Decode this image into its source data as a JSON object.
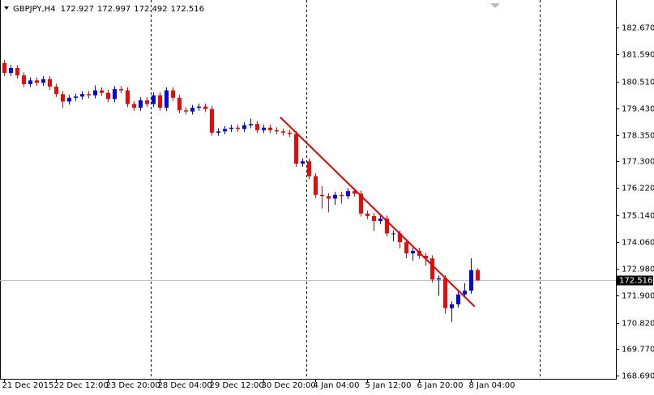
{
  "chart_data": {
    "type": "candlestick",
    "symbol": "GBPJPY,H4",
    "ohlc": [
      172.927,
      172.997,
      172.492,
      172.516
    ],
    "categories": [
      "21 Dec 2015",
      null,
      null,
      null,
      null,
      null,
      null,
      null,
      "22 Dec 12:00",
      null,
      null,
      null,
      null,
      null,
      null,
      null,
      "23 Dec 20:00",
      null,
      null,
      null,
      null,
      null,
      null,
      null,
      "28 Dec 04:00",
      null,
      null,
      null,
      null,
      null,
      null,
      null,
      "29 Dec 12:00",
      null,
      null,
      null,
      null,
      null,
      null,
      null,
      "30 Dec 20:00",
      null,
      null,
      null,
      null,
      null,
      null,
      null,
      "4 Jan 04:00",
      null,
      null,
      null,
      null,
      null,
      null,
      null,
      "5 Jan 12:00",
      null,
      null,
      null,
      null,
      null,
      null,
      null,
      "6 Jan 20:00",
      null,
      null,
      null,
      null,
      null,
      null,
      null,
      "8 Jan 04:00",
      null
    ],
    "open": [
      181.25,
      180.85,
      181.05,
      180.75,
      180.4,
      180.55,
      180.45,
      180.6,
      180.3,
      180.0,
      179.7,
      179.85,
      179.9,
      180.0,
      179.95,
      180.15,
      180.05,
      179.8,
      180.2,
      180.15,
      179.6,
      179.45,
      179.75,
      179.6,
      179.95,
      179.45,
      180.15,
      179.85,
      179.35,
      179.3,
      179.45,
      179.5,
      179.4,
      178.45,
      178.5,
      178.6,
      178.65,
      178.6,
      178.75,
      178.8,
      178.55,
      178.65,
      178.55,
      178.5,
      178.45,
      178.4,
      177.2,
      177.3,
      176.7,
      175.95,
      175.9,
      175.8,
      175.95,
      175.9,
      176.1,
      176.0,
      175.2,
      175.1,
      174.9,
      175.0,
      174.4,
      174.4,
      174.05,
      173.6,
      173.7,
      173.5,
      173.4,
      172.55,
      172.6,
      171.4,
      171.55,
      171.95,
      172.1,
      172.927
    ],
    "high": [
      181.37,
      181.17,
      181.17,
      180.87,
      180.67,
      180.67,
      180.72,
      180.72,
      180.42,
      180.12,
      179.97,
      180.02,
      180.12,
      180.12,
      180.35,
      180.27,
      180.17,
      180.32,
      180.32,
      180.27,
      179.72,
      179.87,
      179.87,
      180.07,
      180.07,
      180.27,
      180.27,
      179.97,
      179.47,
      179.57,
      179.62,
      179.62,
      179.52,
      178.62,
      178.72,
      178.77,
      178.77,
      178.87,
      179.02,
      178.92,
      178.77,
      178.77,
      178.67,
      178.62,
      178.57,
      178.52,
      177.42,
      177.42,
      176.82,
      176.3,
      176.02,
      176.07,
      176.07,
      176.22,
      176.22,
      176.12,
      175.32,
      175.22,
      175.12,
      175.12,
      174.52,
      174.52,
      174.17,
      173.82,
      173.82,
      173.62,
      173.52,
      172.72,
      172.72,
      171.67,
      172.07,
      172.4,
      173.4,
      172.997
    ],
    "low": [
      180.73,
      180.73,
      180.63,
      180.28,
      180.28,
      180.33,
      180.33,
      180.18,
      179.88,
      179.45,
      179.58,
      179.73,
      179.78,
      179.83,
      179.83,
      179.93,
      179.68,
      179.68,
      180.03,
      179.48,
      179.33,
      179.33,
      179.48,
      179.48,
      179.33,
      179.33,
      179.73,
      179.23,
      179.18,
      179.18,
      179.33,
      179.28,
      178.33,
      178.33,
      178.38,
      178.48,
      178.48,
      178.48,
      178.63,
      178.43,
      178.43,
      178.43,
      178.38,
      178.33,
      178.28,
      177.08,
      177.08,
      176.58,
      175.83,
      175.4,
      175.25,
      175.55,
      175.6,
      175.78,
      175.88,
      175.08,
      174.98,
      174.5,
      174.78,
      174.28,
      174.08,
      173.8,
      173.4,
      173.3,
      173.38,
      173.1,
      172.43,
      171.9,
      171.18,
      170.85,
      171.43,
      171.83,
      171.98,
      172.492
    ],
    "close": [
      180.85,
      181.05,
      180.75,
      180.4,
      180.55,
      180.45,
      180.6,
      180.3,
      180.0,
      179.7,
      179.85,
      179.9,
      180.0,
      179.95,
      180.15,
      180.05,
      179.8,
      180.2,
      180.15,
      179.6,
      179.45,
      179.75,
      179.6,
      179.95,
      179.45,
      180.15,
      179.85,
      179.35,
      179.3,
      179.45,
      179.5,
      179.4,
      178.45,
      178.5,
      178.6,
      178.65,
      178.6,
      178.75,
      178.8,
      178.55,
      178.65,
      178.55,
      178.5,
      178.45,
      178.4,
      177.2,
      177.3,
      176.7,
      175.95,
      175.9,
      175.8,
      175.95,
      175.9,
      176.1,
      176.0,
      175.2,
      175.1,
      174.9,
      175.0,
      174.4,
      174.4,
      174.05,
      173.6,
      173.7,
      173.5,
      173.4,
      172.55,
      172.6,
      171.4,
      171.55,
      171.95,
      172.1,
      172.927,
      172.516
    ],
    "up_color": "#0000ff",
    "down_color": "#ff0000",
    "ylim": [
      168.56,
      183.78
    ],
    "yticks": [
      {
        "value": 182.67,
        "label": "182.670"
      },
      {
        "value": 181.59,
        "label": "181.590"
      },
      {
        "value": 180.51,
        "label": "180.510"
      },
      {
        "value": 179.43,
        "label": "179.430"
      },
      {
        "value": 178.35,
        "label": "178.350"
      },
      {
        "value": 177.3,
        "label": "177.300"
      },
      {
        "value": 176.22,
        "label": "176.220"
      },
      {
        "value": 175.14,
        "label": "175.140"
      },
      {
        "value": 174.06,
        "label": "174.060"
      },
      {
        "value": 172.98,
        "label": "172.980"
      },
      {
        "value": 171.9,
        "label": "171.900"
      },
      {
        "value": 170.82,
        "label": "170.820"
      },
      {
        "value": 169.77,
        "label": "169.770"
      },
      {
        "value": 168.69,
        "label": "168.690"
      }
    ],
    "current_price": 172.516,
    "trendline": {
      "x": [
        42.6,
        72.6
      ],
      "y": [
        179.07,
        171.46
      ],
      "color": "#e00000"
    }
  }
}
